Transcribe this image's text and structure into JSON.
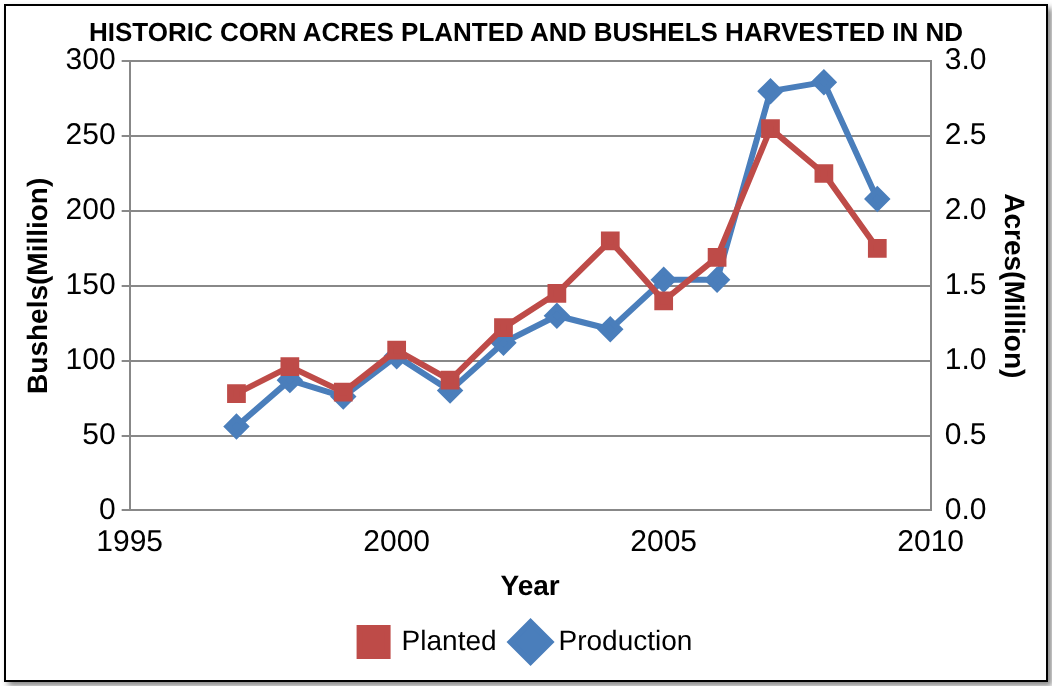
{
  "chart_data": {
    "type": "line",
    "title": "HISTORIC CORN ACRES PLANTED AND BUSHELS HARVESTED IN ND",
    "xlabel": "Year",
    "ylabel": "Bushels(Million)",
    "y2label": "Acres(Million)",
    "x": [
      1997,
      1998,
      1999,
      2000,
      2001,
      2002,
      2003,
      2004,
      2005,
      2006,
      2007,
      2008,
      2009
    ],
    "series": [
      {
        "name": "Production",
        "color": "#4a7ebb",
        "marker": "diamond",
        "values": [
          56,
          87,
          76,
          103,
          80,
          112,
          130,
          121,
          154,
          154,
          280,
          286,
          208
        ]
      },
      {
        "name": "Planted",
        "color": "#be4b48",
        "marker": "square",
        "axis": "y2",
        "values": [
          0.78,
          0.96,
          0.79,
          1.07,
          0.87,
          1.22,
          1.45,
          1.8,
          1.4,
          1.69,
          2.55,
          2.25,
          1.75
        ]
      }
    ],
    "xlim": [
      1995,
      2010
    ],
    "xticks": [
      1995,
      2000,
      2005,
      2010
    ],
    "ylim": [
      0,
      300
    ],
    "yticks": [
      0,
      50,
      100,
      150,
      200,
      250,
      300
    ],
    "y2lim": [
      0,
      3
    ],
    "y2ticks": [
      {
        "value": 0,
        "label": "0.0"
      },
      {
        "value": 0.5,
        "label": "0.5"
      },
      {
        "value": 1,
        "label": "1.0"
      },
      {
        "value": 1.5,
        "label": "1.5"
      },
      {
        "value": 2,
        "label": "2.0"
      },
      {
        "value": 2.5,
        "label": "2.5"
      },
      {
        "value": 3,
        "label": "3.0"
      }
    ],
    "grid": "y",
    "legend": "bottom"
  }
}
